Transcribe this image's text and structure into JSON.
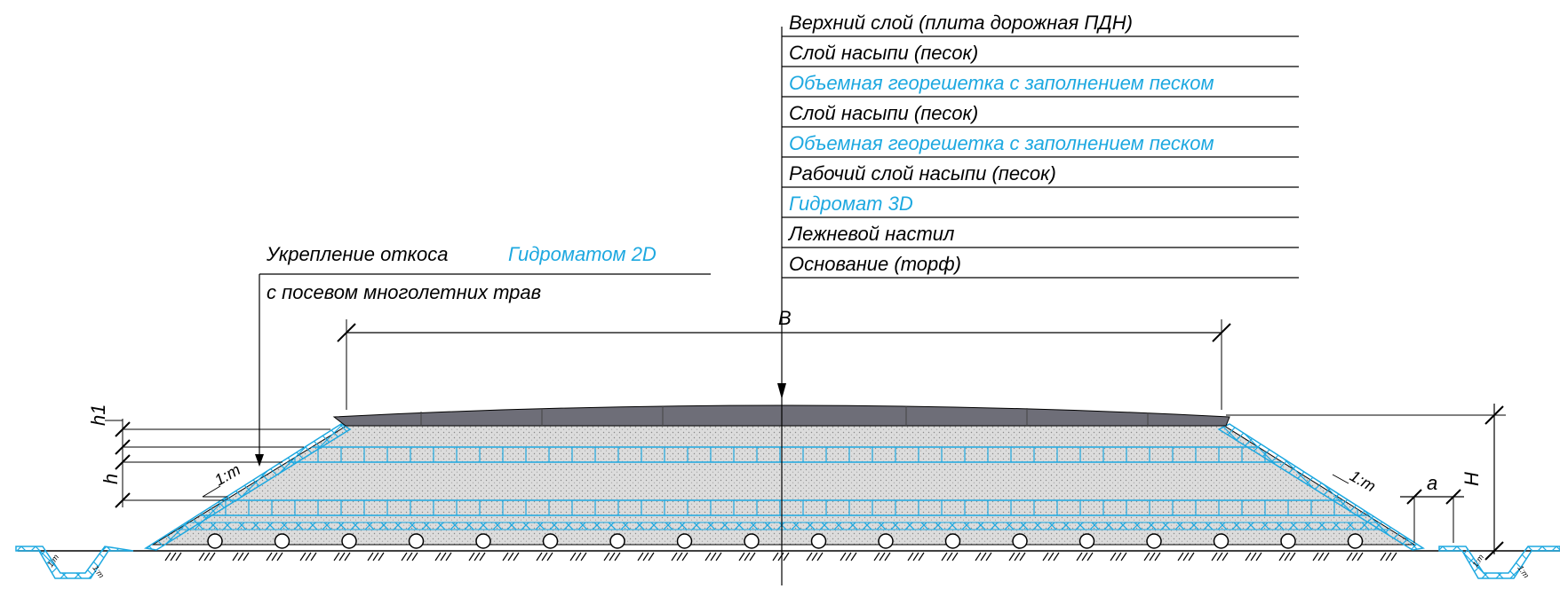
{
  "layers": [
    {
      "text": "Верхний слой (плита дорожная ПДН)",
      "color": "#000000"
    },
    {
      "text": "Слой насыпи (песок)",
      "color": "#000000"
    },
    {
      "text": "Объемная георешетка с заполнением песком",
      "color": "#1da8e0"
    },
    {
      "text": "Слой насыпи (песок)",
      "color": "#000000"
    },
    {
      "text": "Объемная георешетка с заполнением песком",
      "color": "#1da8e0"
    },
    {
      "text": "Рабочий слой насыпи (песок)",
      "color": "#000000"
    },
    {
      "text": "Гидромат 3D",
      "color": "#1da8e0"
    },
    {
      "text": "Лежневой настил",
      "color": "#000000"
    },
    {
      "text": "Основание (торф)",
      "color": "#000000"
    }
  ],
  "slope_note": {
    "line1_black": "Укрепление откоса",
    "line1_blue": "Гидроматом 2D",
    "line2": "с посевом многолетних трав"
  },
  "dimensions": {
    "width": "B",
    "height": "H",
    "layer_top": "h1",
    "layer": "h",
    "berm": "a",
    "slope_left": "1:m",
    "slope_right": "1:m",
    "ditch_slope": "1:m"
  },
  "colors": {
    "accent": "#1da8e0",
    "fill": "#d9d9d9",
    "plate": "#6e6e78",
    "line": "#000000"
  }
}
